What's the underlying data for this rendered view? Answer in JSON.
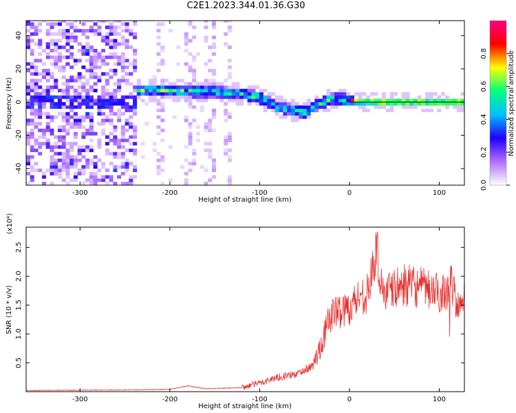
{
  "title": "C2E1.2023.344.01.36.G30",
  "chart_data": [
    {
      "type": "heatmap",
      "xlabel": "Height of straight line (km)",
      "ylabel": "Frequency (Hz)",
      "xlim": [
        -360,
        128
      ],
      "ylim": [
        -50,
        49
      ],
      "xticks": [
        -300,
        -200,
        -100,
        0,
        100
      ],
      "yticks": [
        -40,
        -20,
        0,
        20,
        40
      ],
      "colorbar": {
        "label": "Normalized spectral amplitude",
        "range": [
          0,
          1
        ],
        "ticks": [
          0.0,
          0.2,
          0.4,
          0.6,
          0.8
        ],
        "colormap": [
          "#ffffff",
          "#b070ff",
          "#2000ff",
          "#00c0ff",
          "#00ff80",
          "#ffff00",
          "#ff0000",
          "#ff0080"
        ]
      },
      "ridge": {
        "x": [
          -238,
          -200,
          -150,
          -120,
          -100,
          -80,
          -60,
          -50,
          -45,
          -40,
          -30,
          -20,
          -10,
          0,
          20,
          60,
          128
        ],
        "freq": [
          7,
          7,
          6,
          5,
          3,
          -3,
          -5,
          -6,
          -5,
          -3,
          0,
          2,
          2,
          1,
          0,
          0,
          0
        ]
      },
      "grid": false
    },
    {
      "type": "line",
      "xlabel": "Height of straight line (km)",
      "ylabel": "SNR (10 * v/v)",
      "scale_label": "(x10⁴)",
      "xlim": [
        -360,
        128
      ],
      "ylim": [
        0,
        2.85
      ],
      "xticks": [
        -300,
        -200,
        -100,
        0,
        100
      ],
      "yticks": [
        0.5,
        1.0,
        1.5,
        2.0,
        2.5
      ],
      "color": "#e8302e",
      "series_trend": {
        "x": [
          -360,
          -250,
          -200,
          -180,
          -160,
          -120,
          -100,
          -80,
          -60,
          -40,
          -30,
          -20,
          0,
          10,
          20,
          30,
          35,
          40,
          60,
          80,
          100,
          115,
          120,
          128
        ],
        "y": [
          0.02,
          0.03,
          0.04,
          0.1,
          0.05,
          0.07,
          0.15,
          0.25,
          0.3,
          0.45,
          0.9,
          1.35,
          1.45,
          1.65,
          1.7,
          2.4,
          1.9,
          1.7,
          1.85,
          1.8,
          1.7,
          1.85,
          1.4,
          1.7
        ]
      },
      "grid": false
    }
  ]
}
